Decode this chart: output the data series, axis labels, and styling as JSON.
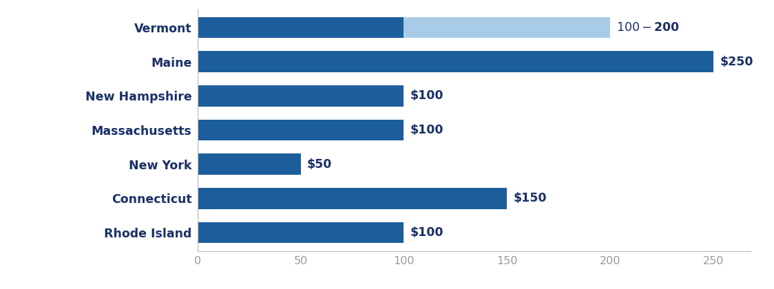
{
  "states": [
    "Vermont",
    "Maine",
    "New Hampshire",
    "Massachusetts",
    "New York",
    "Connecticut",
    "Rhode Island"
  ],
  "values_dark": [
    100,
    250,
    100,
    100,
    50,
    150,
    100
  ],
  "values_light": [
    100,
    0,
    0,
    0,
    0,
    0,
    0
  ],
  "labels": [
    "$100-$200",
    "$250",
    "$100",
    "$100",
    "$50",
    "$150",
    "$100"
  ],
  "dark_blue": "#1b5e9b",
  "light_blue": "#a8cce8",
  "label_color": "#1a3068",
  "axis_label_color": "#999999",
  "background_color": "#ffffff",
  "xlim": [
    0,
    268
  ],
  "xticks": [
    0,
    50,
    100,
    150,
    200,
    250
  ],
  "bar_height": 0.62,
  "label_fontsize": 12.5,
  "tick_fontsize": 11.5,
  "state_fontsize": 12.5
}
